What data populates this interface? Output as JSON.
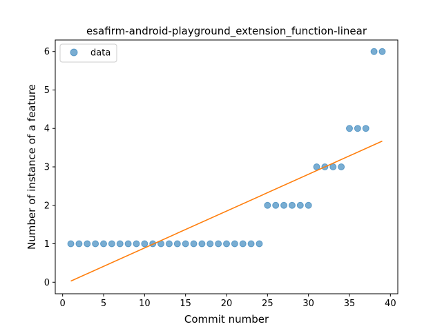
{
  "chart_data": {
    "type": "scatter",
    "title": "esafirm-android-playground_extension_function-linear",
    "xlabel": "Commit number",
    "ylabel": "Number of instance of a feature",
    "xlim": [
      -0.9,
      40.9
    ],
    "ylim": [
      -0.3,
      6.3
    ],
    "xticks": [
      0,
      5,
      10,
      15,
      20,
      25,
      30,
      35,
      40
    ],
    "yticks": [
      0,
      1,
      2,
      3,
      4,
      5,
      6
    ],
    "grid": false,
    "legend_position": "upper-left",
    "series": [
      {
        "name": "data",
        "kind": "scatter",
        "color": "#1f77b4",
        "x": [
          1,
          2,
          3,
          4,
          5,
          6,
          7,
          8,
          9,
          10,
          11,
          12,
          13,
          14,
          15,
          16,
          17,
          18,
          19,
          20,
          21,
          22,
          23,
          24,
          25,
          26,
          27,
          28,
          29,
          30,
          31,
          32,
          33,
          34,
          35,
          36,
          37,
          38,
          39
        ],
        "y": [
          1,
          1,
          1,
          1,
          1,
          1,
          1,
          1,
          1,
          1,
          1,
          1,
          1,
          1,
          1,
          1,
          1,
          1,
          1,
          1,
          1,
          1,
          1,
          1,
          2,
          2,
          2,
          2,
          2,
          2,
          3,
          3,
          3,
          3,
          4,
          4,
          4,
          6,
          6
        ]
      },
      {
        "kind": "line",
        "color": "#ff7f0e",
        "x": [
          1,
          39
        ],
        "y": [
          0.03,
          3.67
        ]
      }
    ]
  }
}
